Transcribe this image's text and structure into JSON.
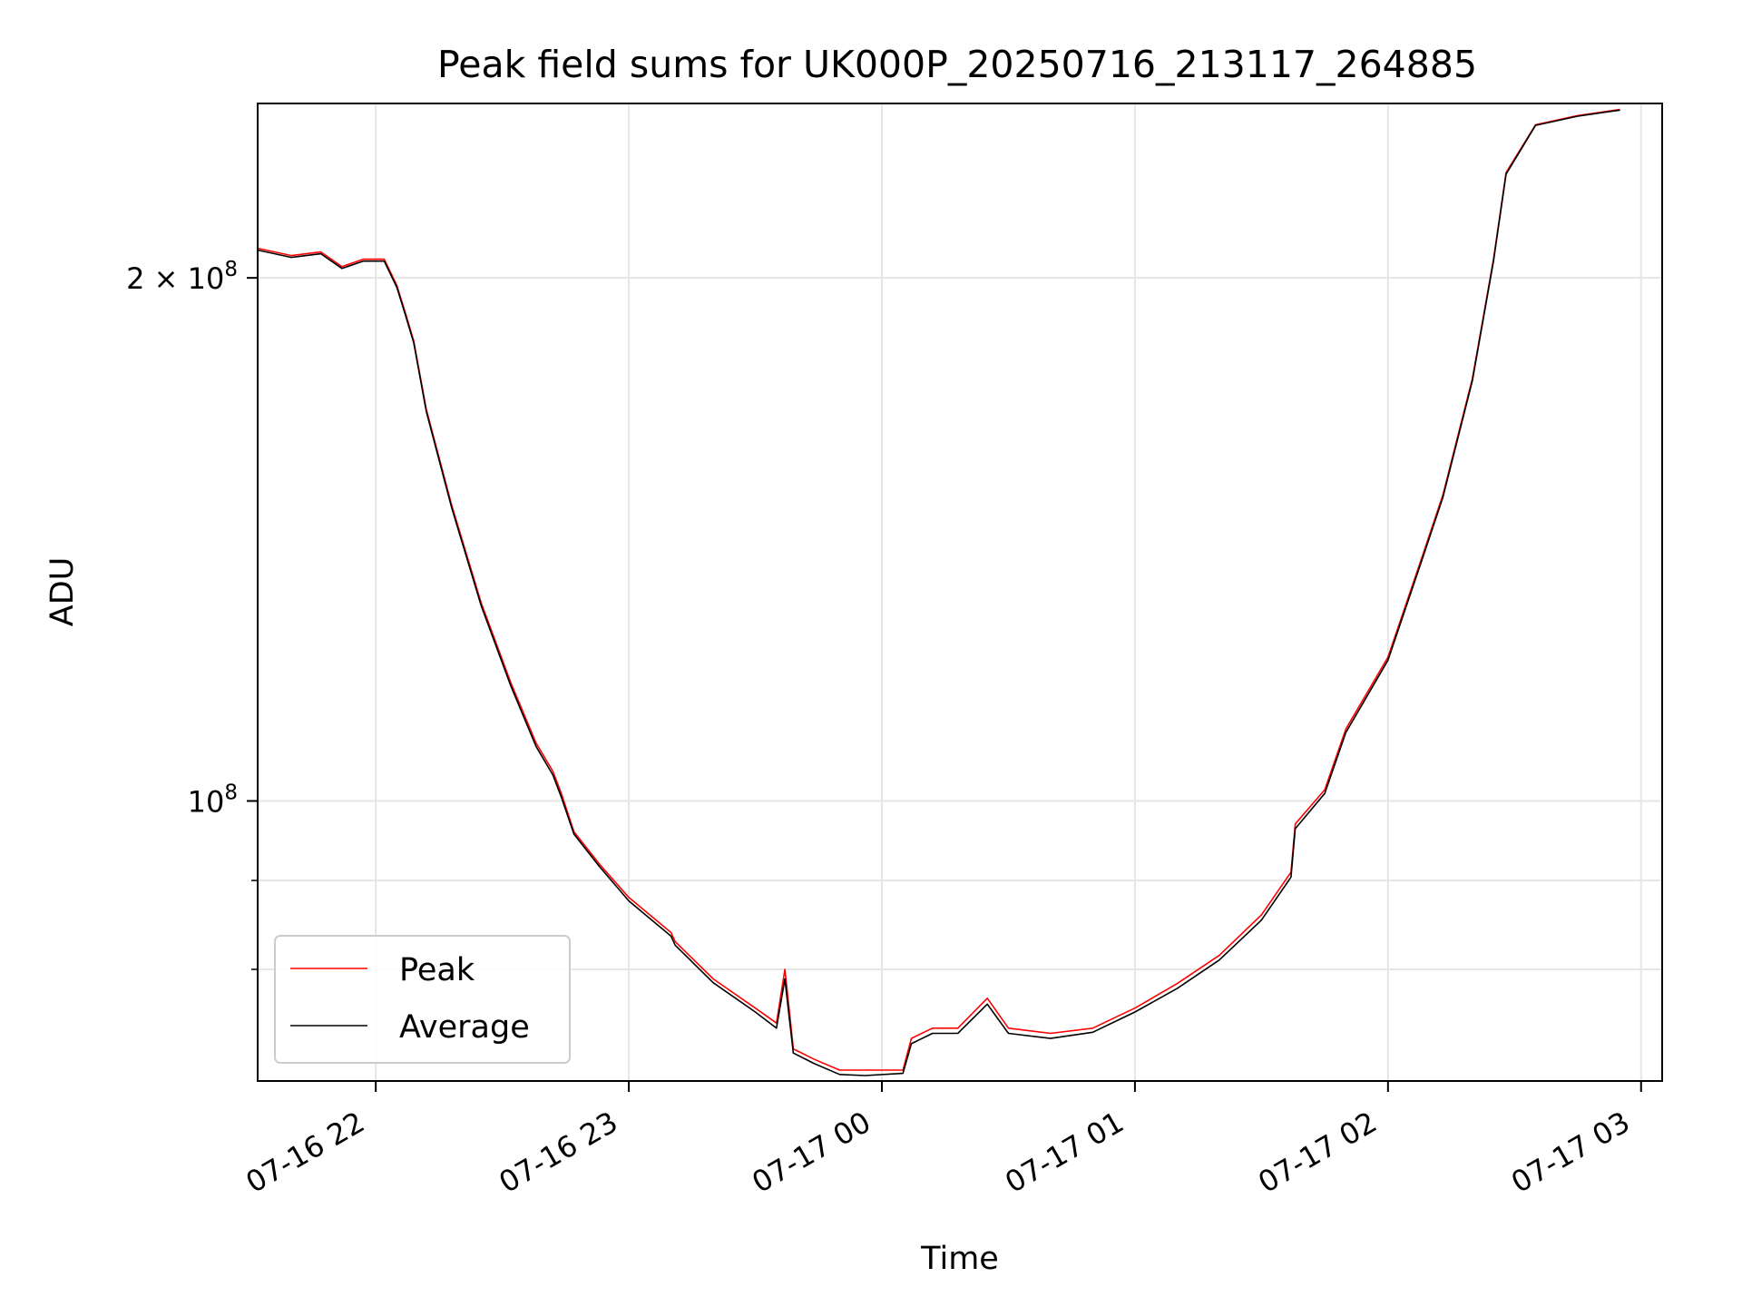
{
  "chart_data": {
    "type": "line",
    "title": "Peak field sums for UK000P_20250716_213117_264885",
    "xlabel": "Time",
    "ylabel": "ADU",
    "yscale": "log",
    "xlim": [
      "2025-07-16 21:32",
      "2025-07-17 03:05"
    ],
    "ylim": [
      69000000,
      252000000
    ],
    "x_ticks": [
      {
        "value": "2025-07-16 22:00",
        "label": "07-16 22"
      },
      {
        "value": "2025-07-16 23:00",
        "label": "07-16 23"
      },
      {
        "value": "2025-07-17 00:00",
        "label": "07-17 00"
      },
      {
        "value": "2025-07-17 01:00",
        "label": "07-17 01"
      },
      {
        "value": "2025-07-17 02:00",
        "label": "07-17 02"
      },
      {
        "value": "2025-07-17 03:00",
        "label": "07-17 03"
      }
    ],
    "y_ticks": [
      {
        "value": 200000000,
        "mantissa": "2",
        "times": "×",
        "base": "10",
        "exp": "8"
      },
      {
        "value": 100000000,
        "mantissa": "",
        "times": "",
        "base": "10",
        "exp": "8"
      }
    ],
    "y_minor_ticks": [
      90000000,
      80000000,
      300000000
    ],
    "grid": true,
    "legend": {
      "placement": "lower-left"
    },
    "series": [
      {
        "name": "Peak",
        "color": "#ff0000",
        "x": [
          "2025-07-16 21:32",
          "2025-07-16 21:40",
          "2025-07-16 21:47",
          "2025-07-16 21:52",
          "2025-07-16 21:57",
          "2025-07-16 22:02",
          "2025-07-16 22:05",
          "2025-07-16 22:07",
          "2025-07-16 22:09",
          "2025-07-16 22:12",
          "2025-07-16 22:18",
          "2025-07-16 22:25",
          "2025-07-16 22:32",
          "2025-07-16 22:38",
          "2025-07-16 22:42",
          "2025-07-16 22:44",
          "2025-07-16 22:47",
          "2025-07-16 22:53",
          "2025-07-16 23:00",
          "2025-07-16 23:10",
          "2025-07-16 23:11",
          "2025-07-16 23:20",
          "2025-07-16 23:30",
          "2025-07-16 23:35",
          "2025-07-16 23:37",
          "2025-07-16 23:38",
          "2025-07-16 23:39",
          "2025-07-16 23:44",
          "2025-07-16 23:50",
          "2025-07-16 23:56",
          "2025-07-17 00:05",
          "2025-07-17 00:07",
          "2025-07-17 00:12",
          "2025-07-17 00:18",
          "2025-07-17 00:25",
          "2025-07-17 00:30",
          "2025-07-17 00:40",
          "2025-07-17 00:50",
          "2025-07-17 00:55",
          "2025-07-17 01:00",
          "2025-07-17 01:10",
          "2025-07-17 01:20",
          "2025-07-17 01:30",
          "2025-07-17 01:37",
          "2025-07-17 01:38",
          "2025-07-17 01:45",
          "2025-07-17 01:50",
          "2025-07-17 02:00",
          "2025-07-17 02:08",
          "2025-07-17 02:13",
          "2025-07-17 02:20",
          "2025-07-17 02:25",
          "2025-07-17 02:28",
          "2025-07-17 02:35",
          "2025-07-17 02:45",
          "2025-07-17 02:55"
        ],
        "y": [
          208000000,
          206000000,
          207000000,
          203000000,
          205000000,
          205000000,
          198000000,
          191000000,
          184000000,
          168000000,
          148000000,
          130000000,
          117000000,
          108000000,
          104000000,
          101000000,
          96000000,
          92000000,
          88000000,
          84000000,
          83000000,
          79000000,
          76000000,
          74500000,
          80000000,
          76000000,
          72000000,
          71000000,
          70000000,
          70000000,
          70000000,
          73000000,
          74000000,
          74000000,
          77000000,
          74000000,
          73500000,
          74000000,
          75000000,
          76000000,
          78500000,
          81500000,
          86000000,
          91000000,
          97000000,
          101500000,
          110000000,
          121000000,
          138000000,
          150000000,
          175000000,
          205000000,
          230000000,
          245000000,
          248000000,
          250000000
        ]
      },
      {
        "name": "Average",
        "color": "#000000",
        "x": [
          "2025-07-16 21:32",
          "2025-07-16 21:40",
          "2025-07-16 21:47",
          "2025-07-16 21:52",
          "2025-07-16 21:57",
          "2025-07-16 22:02",
          "2025-07-16 22:05",
          "2025-07-16 22:07",
          "2025-07-16 22:09",
          "2025-07-16 22:12",
          "2025-07-16 22:18",
          "2025-07-16 22:25",
          "2025-07-16 22:32",
          "2025-07-16 22:38",
          "2025-07-16 22:42",
          "2025-07-16 22:44",
          "2025-07-16 22:47",
          "2025-07-16 22:53",
          "2025-07-16 23:00",
          "2025-07-16 23:10",
          "2025-07-16 23:11",
          "2025-07-16 23:20",
          "2025-07-16 23:30",
          "2025-07-16 23:35",
          "2025-07-16 23:37",
          "2025-07-16 23:38",
          "2025-07-16 23:39",
          "2025-07-16 23:44",
          "2025-07-16 23:50",
          "2025-07-16 23:56",
          "2025-07-17 00:05",
          "2025-07-17 00:07",
          "2025-07-17 00:12",
          "2025-07-17 00:18",
          "2025-07-17 00:25",
          "2025-07-17 00:30",
          "2025-07-17 00:40",
          "2025-07-17 00:50",
          "2025-07-17 00:55",
          "2025-07-17 01:00",
          "2025-07-17 01:10",
          "2025-07-17 01:20",
          "2025-07-17 01:30",
          "2025-07-17 01:37",
          "2025-07-17 01:38",
          "2025-07-17 01:45",
          "2025-07-17 01:50",
          "2025-07-17 02:00",
          "2025-07-17 02:08",
          "2025-07-17 02:13",
          "2025-07-17 02:20",
          "2025-07-17 02:25",
          "2025-07-17 02:28",
          "2025-07-17 02:35",
          "2025-07-17 02:45",
          "2025-07-17 02:55"
        ],
        "y": [
          207500000,
          205500000,
          206500000,
          202500000,
          204500000,
          204500000,
          197500000,
          190500000,
          183500000,
          167500000,
          147500000,
          129500000,
          116500000,
          107500000,
          103500000,
          100500000,
          95700000,
          91700000,
          87600000,
          83600000,
          82600000,
          78600000,
          75600000,
          74000000,
          79000000,
          75200000,
          71600000,
          70600000,
          69600000,
          69500000,
          69700000,
          72500000,
          73500000,
          73500000,
          76400000,
          73500000,
          73000000,
          73600000,
          74600000,
          75600000,
          78000000,
          81000000,
          85400000,
          90400000,
          96400000,
          101000000,
          109500000,
          120500000,
          137500000,
          149500000,
          174500000,
          204500000,
          229500000,
          244800000,
          247800000,
          249800000
        ]
      }
    ]
  }
}
